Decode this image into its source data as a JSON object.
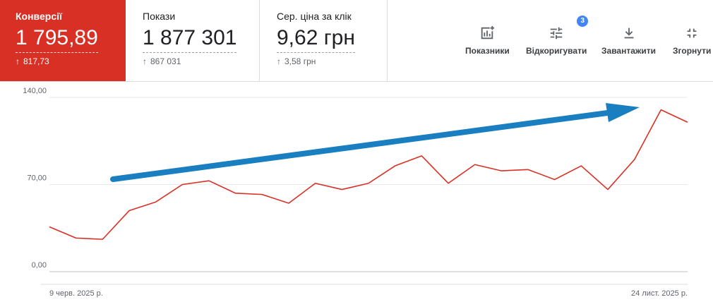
{
  "metrics": [
    {
      "label": "Конверсії",
      "value": "1 795,89",
      "delta": "817,73",
      "active": true
    },
    {
      "label": "Покази",
      "value": "1 877 301",
      "delta": "867 031",
      "active": false
    },
    {
      "label": "Сер. ціна за клік",
      "value": "9,62 грн",
      "delta": "3,58 грн",
      "active": false
    }
  ],
  "toolbar": {
    "metrics_label": "Показники",
    "adjust_label": "Відкоригувати",
    "adjust_badge": "3",
    "download_label": "Завантажити",
    "collapse_label": "Згорнути"
  },
  "colors": {
    "accent": "#d93025",
    "line": "#d93025",
    "annotation_arrow": "#1a7fc0",
    "badge": "#4285f4"
  },
  "chart_data": {
    "type": "line",
    "y_ticks": [
      "140,00",
      "70,00",
      "0,00"
    ],
    "ylim": [
      0,
      140
    ],
    "x_labels": [
      "9 черв. 2025 р.",
      "24 лист. 2025 р."
    ],
    "grid": true,
    "series": [
      {
        "values": [
          36,
          27,
          26,
          49,
          56,
          70,
          73,
          63,
          62,
          55,
          71,
          66,
          71,
          85,
          93,
          71,
          86,
          81,
          82,
          74,
          85,
          66,
          90,
          130,
          120
        ]
      }
    ],
    "annotation": {
      "type": "arrow",
      "direction": "up-trend"
    }
  }
}
